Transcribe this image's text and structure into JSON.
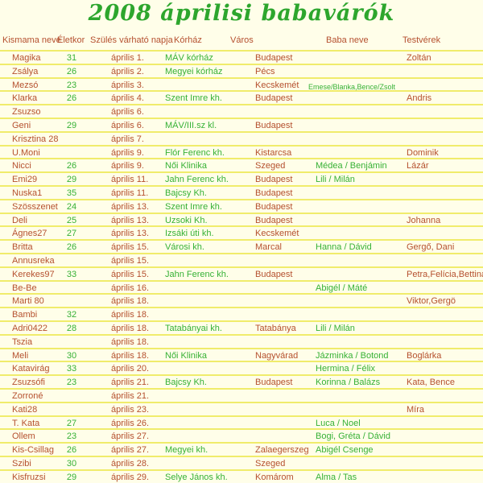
{
  "title": "2008 áprilisi babavárók",
  "colors": {
    "background": "#FFFEE9",
    "separator_line": "#F0EC6B",
    "title_green": "#2DA62D",
    "text_red_brown": "#B5502F",
    "text_green": "#36B136"
  },
  "columns": [
    {
      "label": "Kismama neve"
    },
    {
      "label": "Életkor"
    },
    {
      "label": "Szülés várható napja"
    },
    {
      "label": "Kórház"
    },
    {
      "label": "Város"
    },
    {
      "label": "Baba neve"
    },
    {
      "label": "Testvérek"
    }
  ],
  "rows": [
    {
      "name": "Magika",
      "age": "31",
      "date": "április 1.",
      "hospital": "MÁV kórház",
      "city": "Budapest",
      "baby": "",
      "siblings": "Zoltán"
    },
    {
      "name": "Zsálya",
      "age": "26",
      "date": "április 2.",
      "hospital": "Megyei kórház",
      "city": "Pécs",
      "baby": "",
      "siblings": ""
    },
    {
      "name": "Mezsó",
      "age": "23",
      "date": "április 3.",
      "hospital": "",
      "city": "Kecskemét",
      "baby": "Emese/Blanka,Bence/Zsolt",
      "baby_small": true,
      "siblings": ""
    },
    {
      "name": "Klarka",
      "age": "26",
      "date": "április 4.",
      "hospital": "Szent Imre kh.",
      "city": "Budapest",
      "baby": "",
      "siblings": "Andris"
    },
    {
      "name": "Zsuzso",
      "age": "",
      "date": "április 6.",
      "hospital": "",
      "city": "",
      "baby": "",
      "siblings": ""
    },
    {
      "name": "Geni",
      "age": "29",
      "date": "április 6.",
      "hospital": "MÁV/III.sz kl.",
      "city": "Budapest",
      "baby": "",
      "siblings": ""
    },
    {
      "name": "Krisztina 28",
      "age": "",
      "date": "április 7.",
      "hospital": "",
      "city": "",
      "baby": "",
      "siblings": ""
    },
    {
      "name": "U.Moni",
      "age": "",
      "date": "április 9.",
      "hospital": "Flór Ferenc kh.",
      "city": "Kistarcsa",
      "baby": "",
      "siblings": "Dominik"
    },
    {
      "name": "Nicci",
      "age": "26",
      "date": "április 9.",
      "hospital": "Női Klinika",
      "city": "Szeged",
      "baby": "Médea / Benjámin",
      "siblings": "Lázár"
    },
    {
      "name": "Emi29",
      "age": "29",
      "date": "április 11.",
      "hospital": "Jahn Ferenc kh.",
      "city": "Budapest",
      "baby": "Lili / Milán",
      "siblings": ""
    },
    {
      "name": "Nuska1",
      "age": "35",
      "date": "április 11.",
      "hospital": "Bajcsy Kh.",
      "city": "Budapest",
      "baby": "",
      "siblings": ""
    },
    {
      "name": "Szösszenet",
      "age": "24",
      "date": "április 13.",
      "hospital": "Szent Imre kh.",
      "city": "Budapest",
      "baby": "",
      "siblings": ""
    },
    {
      "name": "Deli",
      "age": "25",
      "date": "április 13.",
      "hospital": "Uzsoki Kh.",
      "city": "Budapest",
      "baby": "",
      "siblings": "Johanna"
    },
    {
      "name": "Ágnes27",
      "age": "27",
      "date": "április 13.",
      "hospital": "Izsáki úti kh.",
      "city": "Kecskemét",
      "baby": "",
      "siblings": ""
    },
    {
      "name": "Britta",
      "age": "26",
      "date": "április 15.",
      "hospital": "Városi kh.",
      "city": "Marcal",
      "baby": "Hanna / Dávid",
      "siblings": "Gergő, Dani"
    },
    {
      "name": "Annusreka",
      "age": "",
      "date": "április 15.",
      "hospital": "",
      "city": "",
      "baby": "",
      "siblings": ""
    },
    {
      "name": "Kerekes97",
      "age": "33",
      "date": "április 15.",
      "hospital": "Jahn Ferenc kh.",
      "city": "Budapest",
      "baby": "",
      "siblings": "Petra,Felícia,Bettina"
    },
    {
      "name": "Be-Be",
      "age": "",
      "date": "április 16.",
      "hospital": "",
      "city": "",
      "baby": "Abigél / Máté",
      "siblings": ""
    },
    {
      "name": "Marti 80",
      "age": "",
      "date": "április 18.",
      "hospital": "",
      "city": "",
      "baby": "",
      "siblings": "Viktor,Gergö"
    },
    {
      "name": "Bambi",
      "age": "32",
      "date": "április 18.",
      "hospital": "",
      "city": "",
      "baby": "",
      "siblings": ""
    },
    {
      "name": "Adri0422",
      "age": "28",
      "date": "április 18.",
      "hospital": "Tatabányai kh.",
      "city": "Tatabánya",
      "baby": "Lili / Milán",
      "siblings": ""
    },
    {
      "name": "Tszia",
      "age": "",
      "date": "április 18.",
      "hospital": "",
      "city": "",
      "baby": "",
      "siblings": ""
    },
    {
      "name": "Meli",
      "age": "30",
      "date": "április 18.",
      "hospital": "Női Klinika",
      "city": "Nagyvárad",
      "baby": "Jázminka / Botond",
      "siblings": "Boglárka"
    },
    {
      "name": "Katavirág",
      "age": "33",
      "date": "április 20.",
      "hospital": "",
      "city": "",
      "baby": "Hermina / Félix",
      "siblings": ""
    },
    {
      "name": "Zsuzsófi",
      "age": "23",
      "date": "április 21.",
      "hospital": "Bajcsy Kh.",
      "city": "Budapest",
      "baby": "Korinna / Balázs",
      "siblings": "Kata, Bence"
    },
    {
      "name": "Zorroné",
      "age": "",
      "date": "április 21.",
      "hospital": "",
      "city": "",
      "baby": "",
      "siblings": ""
    },
    {
      "name": "Kati28",
      "age": "",
      "date": "április 23.",
      "hospital": "",
      "city": "",
      "baby": "",
      "siblings": "Míra"
    },
    {
      "name": "T. Kata",
      "age": "27",
      "date": "április 26.",
      "hospital": "",
      "city": "",
      "baby": "Luca / Noel",
      "siblings": ""
    },
    {
      "name": "Ollem",
      "age": "23",
      "date": "április 27.",
      "hospital": "",
      "city": "",
      "baby": "Bogi, Gréta / Dávid",
      "siblings": ""
    },
    {
      "name": "Kis-Csillag",
      "age": "26",
      "date": "április 27.",
      "hospital": "Megyei kh.",
      "city": "Zalaegerszeg",
      "baby": "Abigél Csenge",
      "siblings": ""
    },
    {
      "name": "Szibi",
      "age": "30",
      "date": "április 28.",
      "hospital": "",
      "city": "Szeged",
      "baby": "",
      "siblings": ""
    },
    {
      "name": "Kisfruzsi",
      "age": "29",
      "date": "április 29.",
      "hospital": "Selye János kh.",
      "city": "Komárom",
      "baby": "Alma / Tas",
      "siblings": ""
    }
  ]
}
